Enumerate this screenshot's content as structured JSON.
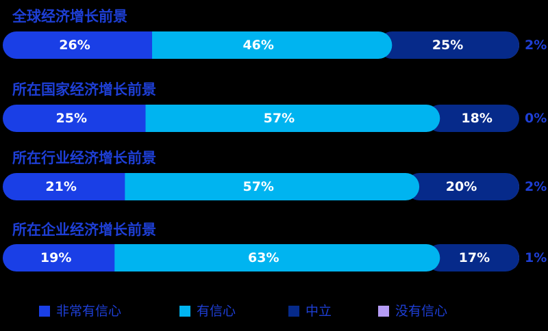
{
  "chart_data": {
    "type": "bar",
    "orientation": "horizontal-stacked-100",
    "categories": [
      "全球经济增长前景",
      "所在国家经济增长前景",
      "所在行业经济增长前景",
      "所在企业经济增长前景"
    ],
    "series": [
      {
        "name": "非常有信心",
        "color": "#1a3fe6",
        "values": [
          26,
          25,
          21,
          19
        ],
        "labels": [
          "26%",
          "25%",
          "21%",
          "19%"
        ]
      },
      {
        "name": "有信心",
        "color": "#00b4f0",
        "values": [
          46,
          57,
          57,
          63
        ],
        "labels": [
          "46%",
          "57%",
          "57%",
          "63%"
        ]
      },
      {
        "name": "中立",
        "color": "#062a8a",
        "values": [
          25,
          18,
          20,
          17
        ],
        "labels": [
          "25%",
          "18%",
          "20%",
          "17%"
        ]
      },
      {
        "name": "没有信心",
        "color": "#b59cf5",
        "values": [
          2,
          0,
          2,
          1
        ],
        "labels": [
          "2%",
          "0%",
          "2%",
          "1%"
        ]
      }
    ],
    "legend_position": "bottom",
    "xlim": [
      0,
      100
    ],
    "grid": false
  }
}
